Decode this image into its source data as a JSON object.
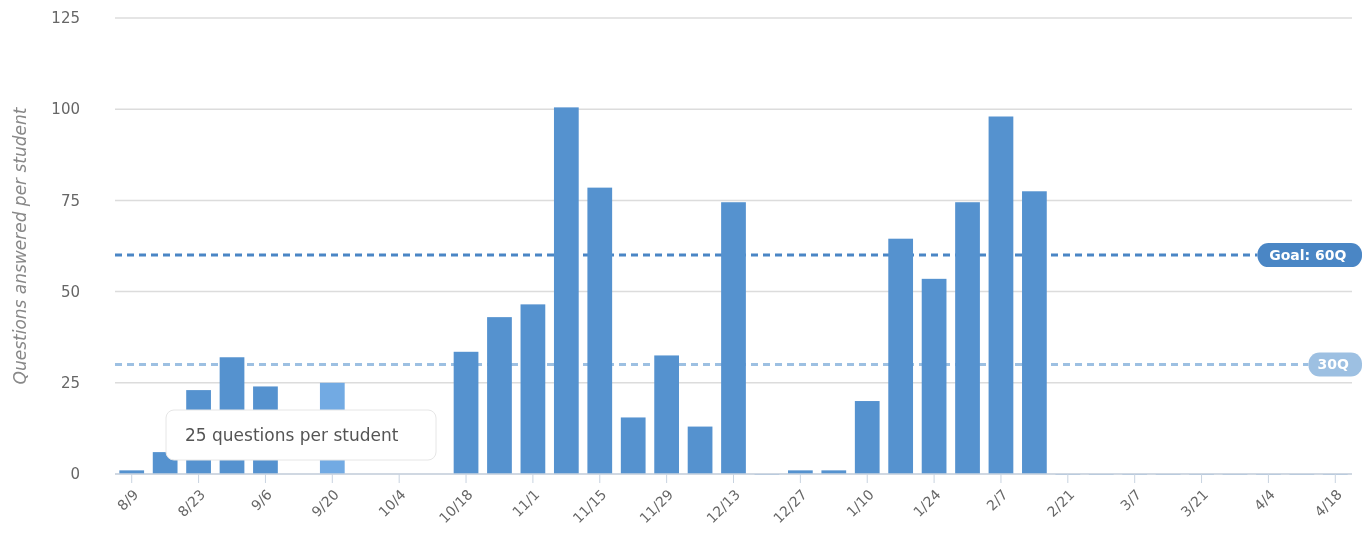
{
  "chart_data": {
    "type": "bar",
    "ylabel": "Questions answered per student",
    "categories": [
      "8/9",
      null,
      "8/23",
      null,
      "9/6",
      null,
      "9/20",
      null,
      "10/4",
      null,
      "10/18",
      null,
      "11/1",
      null,
      "11/15",
      null,
      "11/29",
      null,
      "12/13",
      null,
      "12/27",
      null,
      "1/10",
      null,
      "1/24",
      null,
      "2/7",
      null,
      "2/21",
      null,
      "3/7",
      null,
      "3/21",
      null,
      "4/4",
      null,
      "4/18"
    ],
    "values": [
      1,
      6,
      23,
      32,
      24,
      null,
      25,
      null,
      null,
      null,
      33.5,
      43,
      46.5,
      100.5,
      78.5,
      15.5,
      32.5,
      13,
      74.5,
      0,
      1,
      1,
      20,
      64.5,
      53.5,
      74.5,
      98,
      77.5,
      0,
      0,
      0,
      0,
      0,
      0,
      0,
      0,
      0
    ],
    "colors": [
      "#5592cf",
      "#5592cf",
      "#5592cf",
      "#5592cf",
      "#5592cf",
      "#5592cf",
      "#72aae3",
      "#5592cf",
      "#5592cf",
      "#5592cf",
      "#5592cf",
      "#5592cf",
      "#5592cf",
      "#5592cf",
      "#5592cf",
      "#5592cf",
      "#5592cf",
      "#5592cf",
      "#5592cf",
      "#5592cf",
      "#5592cf",
      "#5592cf",
      "#5592cf",
      "#5592cf",
      "#5592cf",
      "#5592cf",
      "#5592cf",
      "#5592cf",
      "#5592cf",
      "#5592cf",
      "#5592cf",
      "#5592cf",
      "#5592cf",
      "#5592cf",
      "#5592cf",
      "#5592cf",
      "#5592cf"
    ],
    "ylim": [
      0,
      125
    ],
    "yticks": [
      0,
      25,
      50,
      75,
      100,
      125
    ],
    "grid": "y",
    "ref_lines": [
      {
        "axis": "y",
        "value": 60,
        "label": "Goal: 60Q",
        "color": "#4a86c5",
        "line_style": "dashed"
      },
      {
        "axis": "y",
        "value": 30,
        "label": "30Q",
        "color": "#9dc0e2",
        "line_style": "dashed"
      }
    ],
    "annotations": [
      "25 questions per student"
    ]
  }
}
